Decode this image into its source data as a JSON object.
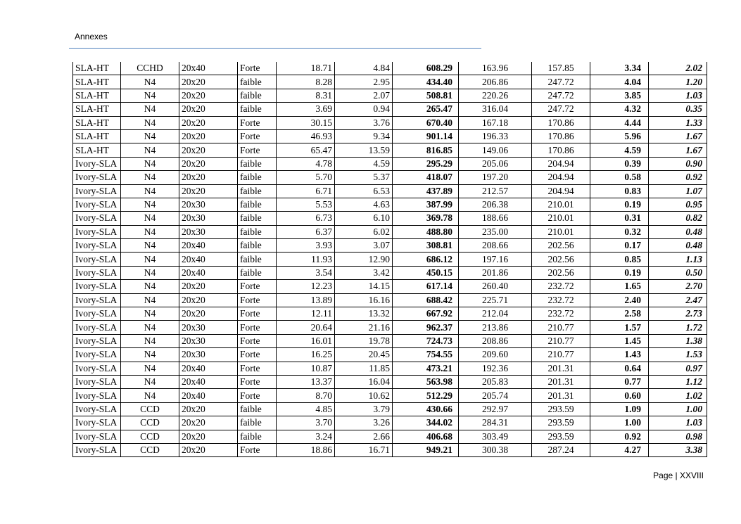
{
  "header": {
    "title": "Annexes",
    "rule_color": "#4f81bd"
  },
  "footer": {
    "page_label": "Page",
    "separator": "|",
    "page_number": "XXVIII"
  },
  "table": {
    "rows": [
      [
        "SLA-HT",
        "CCHD",
        "20x40",
        "Forte",
        "18.71",
        "4.84",
        "608.29",
        "163.96",
        "157.85",
        "3.34",
        "2.02"
      ],
      [
        "SLA-HT",
        "N4",
        "20x20",
        "faible",
        "8.28",
        "2.95",
        "434.40",
        "206.86",
        "247.72",
        "4.04",
        "1.20"
      ],
      [
        "SLA-HT",
        "N4",
        "20x20",
        "faible",
        "8.31",
        "2.07",
        "508.81",
        "220.26",
        "247.72",
        "3.85",
        "1.03"
      ],
      [
        "SLA-HT",
        "N4",
        "20x20",
        "faible",
        "3.69",
        "0.94",
        "265.47",
        "316.04",
        "247.72",
        "4.32",
        "0.35"
      ],
      [
        "SLA-HT",
        "N4",
        "20x20",
        "Forte",
        "30.15",
        "3.76",
        "670.40",
        "167.18",
        "170.86",
        "4.44",
        "1.33"
      ],
      [
        "SLA-HT",
        "N4",
        "20x20",
        "Forte",
        "46.93",
        "9.34",
        "901.14",
        "196.33",
        "170.86",
        "5.96",
        "1.67"
      ],
      [
        "SLA-HT",
        "N4",
        "20x20",
        "Forte",
        "65.47",
        "13.59",
        "816.85",
        "149.06",
        "170.86",
        "4.59",
        "1.67"
      ],
      [
        "Ivory-SLA",
        "N4",
        "20x20",
        "faible",
        "4.78",
        "4.59",
        "295.29",
        "205.06",
        "204.94",
        "0.39",
        "0.90"
      ],
      [
        "Ivory-SLA",
        "N4",
        "20x20",
        "faible",
        "5.70",
        "5.37",
        "418.07",
        "197.20",
        "204.94",
        "0.58",
        "0.92"
      ],
      [
        "Ivory-SLA",
        "N4",
        "20x20",
        "faible",
        "6.71",
        "6.53",
        "437.89",
        "212.57",
        "204.94",
        "0.83",
        "1.07"
      ],
      [
        "Ivory-SLA",
        "N4",
        "20x30",
        "faible",
        "5.53",
        "4.63",
        "387.99",
        "206.38",
        "210.01",
        "0.19",
        "0.95"
      ],
      [
        "Ivory-SLA",
        "N4",
        "20x30",
        "faible",
        "6.73",
        "6.10",
        "369.78",
        "188.66",
        "210.01",
        "0.31",
        "0.82"
      ],
      [
        "Ivory-SLA",
        "N4",
        "20x30",
        "faible",
        "6.37",
        "6.02",
        "488.80",
        "235.00",
        "210.01",
        "0.32",
        "0.48"
      ],
      [
        "Ivory-SLA",
        "N4",
        "20x40",
        "faible",
        "3.93",
        "3.07",
        "308.81",
        "208.66",
        "202.56",
        "0.17",
        "0.48"
      ],
      [
        "Ivory-SLA",
        "N4",
        "20x40",
        "faible",
        "11.93",
        "12.90",
        "686.12",
        "197.16",
        "202.56",
        "0.85",
        "1.13"
      ],
      [
        "Ivory-SLA",
        "N4",
        "20x40",
        "faible",
        "3.54",
        "3.42",
        "450.15",
        "201.86",
        "202.56",
        "0.19",
        "0.50"
      ],
      [
        "Ivory-SLA",
        "N4",
        "20x20",
        "Forte",
        "12.23",
        "14.15",
        "617.14",
        "260.40",
        "232.72",
        "1.65",
        "2.70"
      ],
      [
        "Ivory-SLA",
        "N4",
        "20x20",
        "Forte",
        "13.89",
        "16.16",
        "688.42",
        "225.71",
        "232.72",
        "2.40",
        "2.47"
      ],
      [
        "Ivory-SLA",
        "N4",
        "20x20",
        "Forte",
        "12.11",
        "13.32",
        "667.92",
        "212.04",
        "232.72",
        "2.58",
        "2.73"
      ],
      [
        "Ivory-SLA",
        "N4",
        "20x30",
        "Forte",
        "20.64",
        "21.16",
        "962.37",
        "213.86",
        "210.77",
        "1.57",
        "1.72"
      ],
      [
        "Ivory-SLA",
        "N4",
        "20x30",
        "Forte",
        "16.01",
        "19.78",
        "724.73",
        "208.86",
        "210.77",
        "1.45",
        "1.38"
      ],
      [
        "Ivory-SLA",
        "N4",
        "20x30",
        "Forte",
        "16.25",
        "20.45",
        "754.55",
        "209.60",
        "210.77",
        "1.43",
        "1.53"
      ],
      [
        "Ivory-SLA",
        "N4",
        "20x40",
        "Forte",
        "10.87",
        "11.85",
        "473.21",
        "192.36",
        "201.31",
        "0.64",
        "0.97"
      ],
      [
        "Ivory-SLA",
        "N4",
        "20x40",
        "Forte",
        "13.37",
        "16.04",
        "563.98",
        "205.83",
        "201.31",
        "0.77",
        "1.12"
      ],
      [
        "Ivory-SLA",
        "N4",
        "20x40",
        "Forte",
        "8.70",
        "10.62",
        "512.29",
        "205.74",
        "201.31",
        "0.60",
        "1.02"
      ],
      [
        "Ivory-SLA",
        "CCD",
        "20x20",
        "faible",
        "4.85",
        "3.79",
        "430.66",
        "292.97",
        "293.59",
        "1.09",
        "1.00"
      ],
      [
        "Ivory-SLA",
        "CCD",
        "20x20",
        "faible",
        "3.70",
        "3.26",
        "344.02",
        "284.31",
        "293.59",
        "1.00",
        "1.03"
      ],
      [
        "Ivory-SLA",
        "CCD",
        "20x20",
        "faible",
        "3.24",
        "2.66",
        "406.68",
        "303.49",
        "293.59",
        "0.92",
        "0.98"
      ],
      [
        "Ivory-SLA",
        "CCD",
        "20x20",
        "Forte",
        "18.86",
        "16.71",
        "949.21",
        "300.38",
        "287.24",
        "4.27",
        "3.38"
      ]
    ]
  }
}
